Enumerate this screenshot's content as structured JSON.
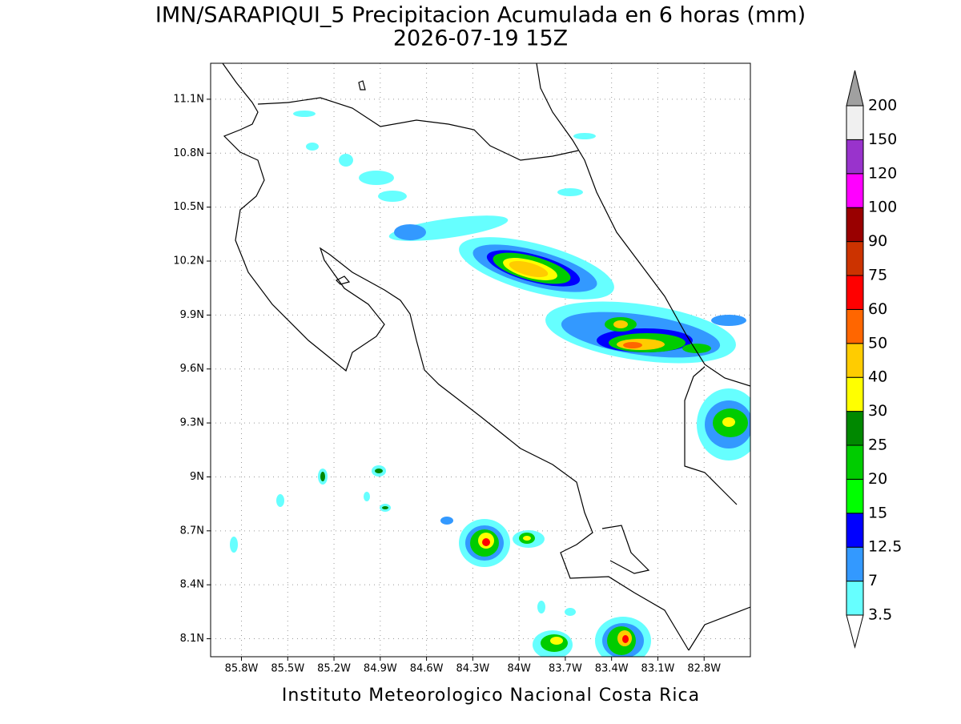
{
  "title": "IMN/SARAPIQUI_5 Precipitacion Acumulada en 6 horas (mm)",
  "subtitle": "2026-07-19 15Z",
  "footer": "Instituto Meteorologico Nacional Costa Rica",
  "map": {
    "lon_range": [
      -86,
      -82.5
    ],
    "lat_range": [
      8,
      11.3
    ],
    "lat_ticks": [
      {
        "value": 11.1,
        "label": "11.1N"
      },
      {
        "value": 10.8,
        "label": "10.8N"
      },
      {
        "value": 10.5,
        "label": "10.5N"
      },
      {
        "value": 10.2,
        "label": "10.2N"
      },
      {
        "value": 9.9,
        "label": "9.9N"
      },
      {
        "value": 9.6,
        "label": "9.6N"
      },
      {
        "value": 9.3,
        "label": "9.3N"
      },
      {
        "value": 9,
        "label": "9N"
      },
      {
        "value": 8.7,
        "label": "8.7N"
      },
      {
        "value": 8.4,
        "label": "8.4N"
      },
      {
        "value": 8.1,
        "label": "8.1N"
      }
    ],
    "lon_ticks": [
      {
        "value": -85.8,
        "label": "85.8W"
      },
      {
        "value": -85.5,
        "label": "85.5W"
      },
      {
        "value": -85.2,
        "label": "85.2W"
      },
      {
        "value": -84.9,
        "label": "84.9W"
      },
      {
        "value": -84.6,
        "label": "84.6W"
      },
      {
        "value": -84.3,
        "label": "84.3W"
      },
      {
        "value": -84,
        "label": "84W"
      },
      {
        "value": -83.7,
        "label": "83.7W"
      },
      {
        "value": -83.4,
        "label": "83.4W"
      },
      {
        "value": -83.1,
        "label": "83.1W"
      },
      {
        "value": -82.8,
        "label": "82.8W"
      }
    ],
    "grid": true
  },
  "colorbar": {
    "levels": [
      3.5,
      7,
      12.5,
      15,
      20,
      25,
      30,
      40,
      50,
      60,
      75,
      90,
      100,
      120,
      150,
      200
    ],
    "colors": [
      "#66ffff",
      "#3399ff",
      "#0000ff",
      "#00ff00",
      "#00cc00",
      "#008800",
      "#ffff00",
      "#ffcc00",
      "#ff6600",
      "#ff0000",
      "#cc3300",
      "#990000",
      "#ff00ff",
      "#9933cc",
      "#f0f0f0"
    ],
    "below_color": "#ffffff",
    "above_color": "#a0a0a0"
  }
}
